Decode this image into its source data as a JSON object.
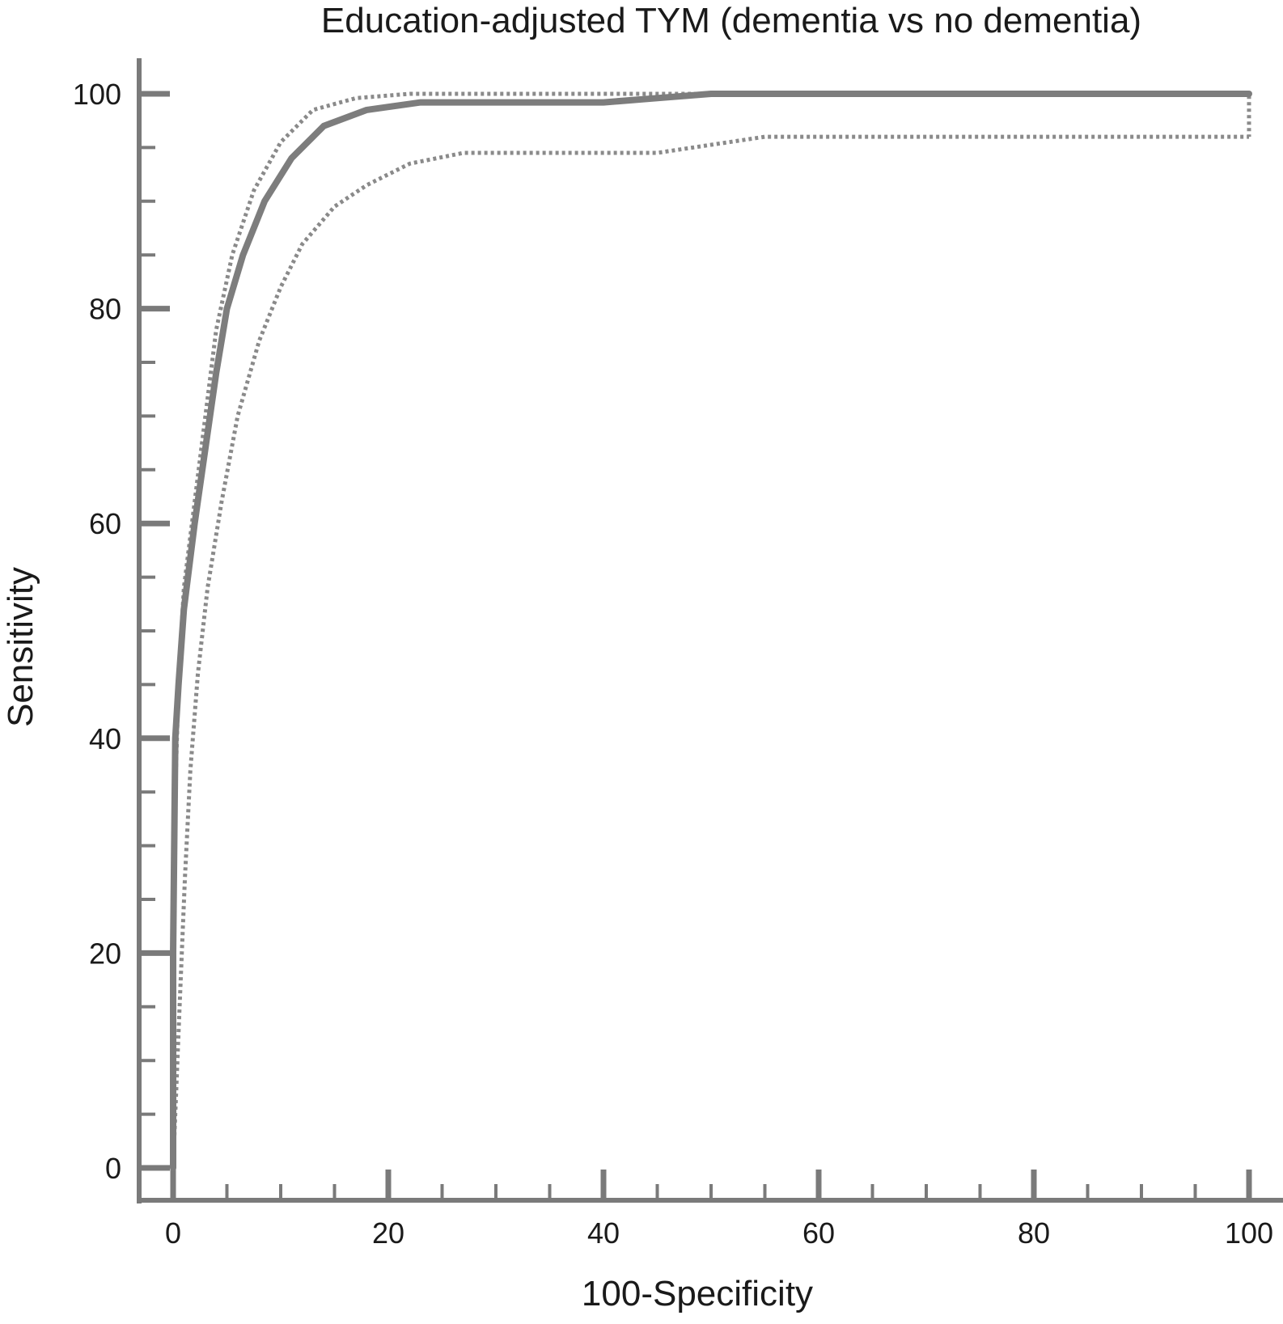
{
  "chart_data": {
    "type": "line",
    "title": "Education-adjusted TYM (dementia vs no dementia)",
    "xlabel": "100-Specificity",
    "ylabel": "Sensitivity",
    "xlim": [
      0,
      100
    ],
    "ylim": [
      0,
      100
    ],
    "x_ticks": [
      "0",
      "20",
      "40",
      "60",
      "80",
      "100"
    ],
    "y_ticks": [
      "0",
      "20",
      "40",
      "60",
      "80",
      "100"
    ],
    "x_tick_values": [
      0,
      20,
      40,
      60,
      80,
      100
    ],
    "y_tick_values": [
      0,
      20,
      40,
      60,
      80,
      100
    ],
    "grid": false,
    "legend": "none",
    "colors": {
      "axis": "#7a7a7a",
      "curve": "#7d7d7d",
      "ci": "#8a8a8a",
      "text": "#1a1a1a"
    },
    "series": [
      {
        "style": "solid",
        "x": [
          0,
          0,
          0.2,
          0.5,
          1,
          2,
          3,
          4,
          5,
          6.5,
          8.5,
          11,
          14,
          18,
          23,
          30,
          40,
          45,
          50,
          60,
          80,
          100
        ],
        "y": [
          0,
          20,
          40,
          45,
          52,
          60,
          67,
          74,
          80,
          85,
          90,
          94,
          97,
          98.5,
          99.2,
          99.2,
          99.2,
          99.6,
          100,
          100,
          100,
          100
        ]
      },
      {
        "style": "dotted",
        "x": [
          0,
          0,
          0.2,
          0.5,
          1,
          2,
          3,
          4,
          5.5,
          7.5,
          10,
          13,
          17,
          22,
          30,
          40,
          60,
          80,
          100,
          100
        ],
        "y": [
          0,
          15,
          35,
          45,
          54,
          62,
          70,
          78,
          85,
          91,
          95.5,
          98.5,
          99.6,
          100,
          100,
          100,
          100,
          100,
          100,
          96
        ]
      },
      {
        "style": "dotted",
        "x": [
          0,
          0.6,
          1.1,
          1.6,
          2.3,
          3.2,
          4.5,
          6,
          8,
          10,
          12,
          15,
          18,
          22,
          27,
          35,
          45,
          55,
          65,
          80,
          100
        ],
        "y": [
          0,
          15,
          27,
          37,
          46,
          54,
          62,
          70,
          77,
          82,
          86,
          89.5,
          91.5,
          93.5,
          94.5,
          94.5,
          94.5,
          96,
          96,
          96,
          96
        ]
      }
    ]
  }
}
